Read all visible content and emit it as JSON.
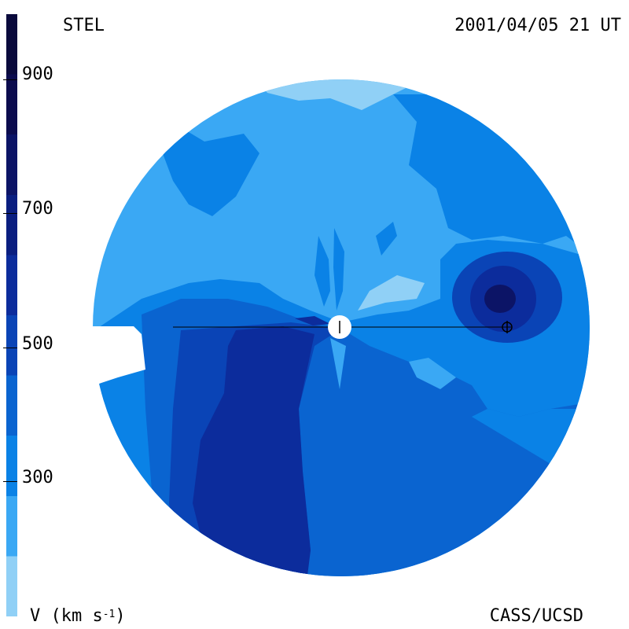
{
  "header": {
    "title": "STEL",
    "timestamp": "2001/04/05 21 UT"
  },
  "footer": {
    "units_prefix": "V (km s",
    "units_exp": "-1",
    "units_suffix": ")",
    "credit": "CASS/UCSD"
  },
  "colorbar": {
    "ticks": [
      "900",
      "700",
      "500",
      "300"
    ],
    "bands": [
      "#0a0a3c",
      "#0c0c4e",
      "#0c1466",
      "#0a1e80",
      "#0c2c9c",
      "#0a44b6",
      "#0a64d0",
      "#0a82e6",
      "#3aa8f4",
      "#90d0f6"
    ],
    "band_edges_kms": [
      1000,
      900,
      800,
      700,
      600,
      500,
      400,
      300,
      200,
      100
    ]
  },
  "map": {
    "quantity": "solar wind speed",
    "palette": {
      "lightest": "#90d0f6",
      "light": "#3aa8f4",
      "medium": "#0a82e6",
      "mid_dark": "#0a64d0",
      "dark": "#0a44b6",
      "darker": "#0c2c9c",
      "darkest": "#0c1466"
    },
    "sun_symbol": "sun-disk",
    "earth_symbol": "earth-circle-plus"
  }
}
